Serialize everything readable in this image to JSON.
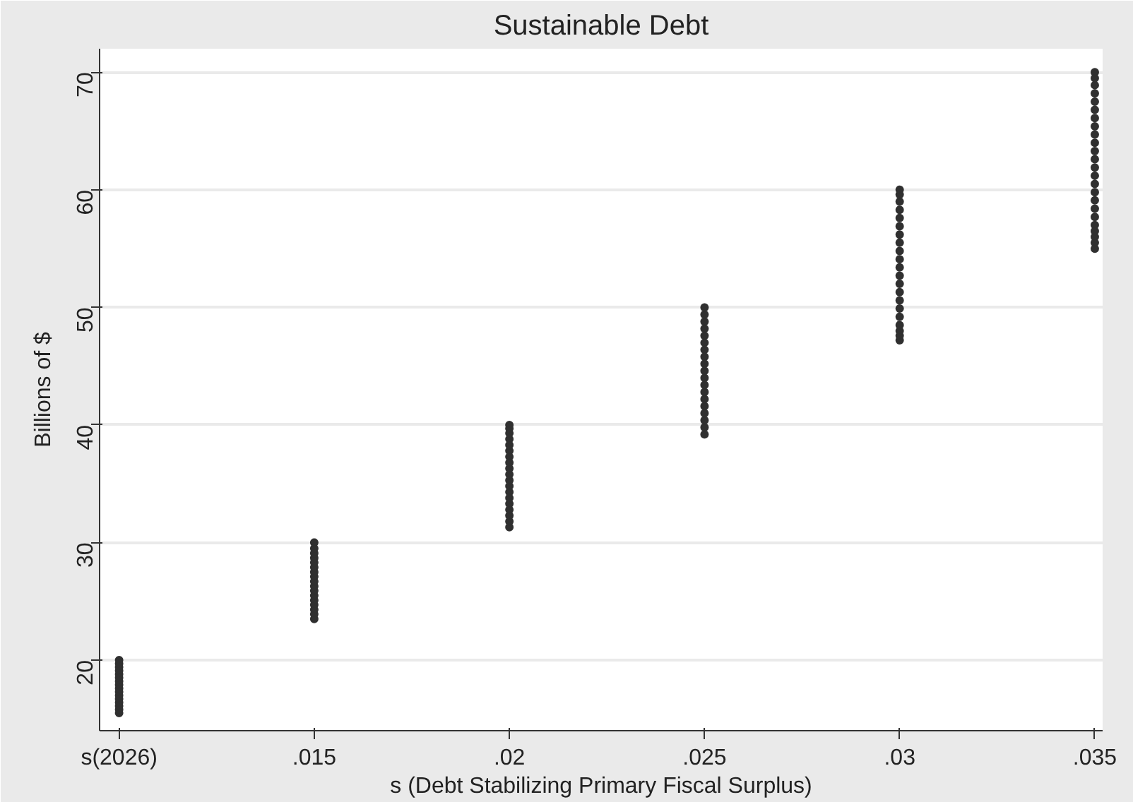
{
  "chart_data": {
    "type": "scatter",
    "title": "Sustainable Debt",
    "xlabel": "s (Debt Stabilizing Primary Fiscal Surplus)",
    "ylabel": "Billions of $",
    "xlim": [
      0.0095,
      0.0352
    ],
    "xticks": [
      {
        "value": 0.01,
        "label": "s(2026)"
      },
      {
        "value": 0.015,
        "label": ".015"
      },
      {
        "value": 0.02,
        "label": ".02"
      },
      {
        "value": 0.025,
        "label": ".025"
      },
      {
        "value": 0.03,
        "label": ".03"
      },
      {
        "value": 0.035,
        "label": ".035"
      }
    ],
    "ylim": [
      14,
      72
    ],
    "yticks": [
      20,
      30,
      40,
      50,
      60,
      70
    ],
    "grid": "y",
    "marker": "circle",
    "series": [
      {
        "color": "#303030",
        "x": [
          0.01,
          0.01,
          0.01,
          0.01,
          0.01,
          0.01,
          0.01,
          0.01,
          0.01,
          0.01,
          0.01,
          0.01,
          0.01,
          0.01,
          0.01,
          0.01
        ],
        "values": [
          15.5,
          15.8,
          16.1,
          16.4,
          16.7,
          17.0,
          17.3,
          17.6,
          17.9,
          18.2,
          18.5,
          18.8,
          19.1,
          19.4,
          19.7,
          20.0
        ]
      },
      {
        "color": "#303030",
        "x": [
          0.015,
          0.015,
          0.015,
          0.015,
          0.015,
          0.015,
          0.015,
          0.015,
          0.015,
          0.015,
          0.015,
          0.015,
          0.015,
          0.015,
          0.015,
          0.015,
          0.015
        ],
        "values": [
          23.5,
          23.9,
          24.3,
          24.7,
          25.1,
          25.5,
          25.9,
          26.3,
          26.7,
          27.1,
          27.5,
          27.9,
          28.3,
          28.7,
          29.1,
          29.5,
          30.0
        ]
      },
      {
        "color": "#303030",
        "x": [
          0.02,
          0.02,
          0.02,
          0.02,
          0.02,
          0.02,
          0.02,
          0.02,
          0.02,
          0.02,
          0.02,
          0.02,
          0.02,
          0.02,
          0.02,
          0.02,
          0.02,
          0.02,
          0.02
        ],
        "values": [
          31.3,
          31.8,
          32.3,
          32.8,
          33.3,
          33.8,
          34.3,
          34.8,
          35.3,
          35.8,
          36.3,
          36.8,
          37.3,
          37.8,
          38.3,
          38.8,
          39.3,
          39.7,
          40.0
        ]
      },
      {
        "color": "#303030",
        "x": [
          0.025,
          0.025,
          0.025,
          0.025,
          0.025,
          0.025,
          0.025,
          0.025,
          0.025,
          0.025,
          0.025,
          0.025,
          0.025,
          0.025,
          0.025,
          0.025,
          0.025,
          0.025,
          0.025
        ],
        "values": [
          39.2,
          39.8,
          40.4,
          41.0,
          41.6,
          42.2,
          42.8,
          43.4,
          44.0,
          44.6,
          45.2,
          45.8,
          46.4,
          47.0,
          47.6,
          48.2,
          48.8,
          49.4,
          50.0
        ]
      },
      {
        "color": "#303030",
        "x": [
          0.03,
          0.03,
          0.03,
          0.03,
          0.03,
          0.03,
          0.03,
          0.03,
          0.03,
          0.03,
          0.03,
          0.03,
          0.03,
          0.03,
          0.03,
          0.03,
          0.03,
          0.03,
          0.03,
          0.03,
          0.03
        ],
        "values": [
          47.2,
          47.6,
          48.0,
          48.5,
          49.2,
          49.9,
          50.6,
          51.3,
          52.0,
          52.7,
          53.4,
          54.1,
          54.8,
          55.5,
          56.2,
          56.9,
          57.6,
          58.3,
          59.0,
          59.6,
          60.0
        ]
      },
      {
        "color": "#303030",
        "x": [
          0.035,
          0.035,
          0.035,
          0.035,
          0.035,
          0.035,
          0.035,
          0.035,
          0.035,
          0.035,
          0.035,
          0.035,
          0.035,
          0.035,
          0.035,
          0.035,
          0.035,
          0.035,
          0.035,
          0.035,
          0.035,
          0.035,
          0.035,
          0.035
        ],
        "values": [
          55.0,
          55.5,
          56.0,
          56.5,
          57.0,
          57.7,
          58.4,
          59.1,
          59.8,
          60.5,
          61.2,
          61.9,
          62.6,
          63.3,
          64.0,
          64.7,
          65.4,
          66.1,
          66.8,
          67.5,
          68.2,
          68.9,
          69.5,
          70.0
        ]
      }
    ]
  }
}
